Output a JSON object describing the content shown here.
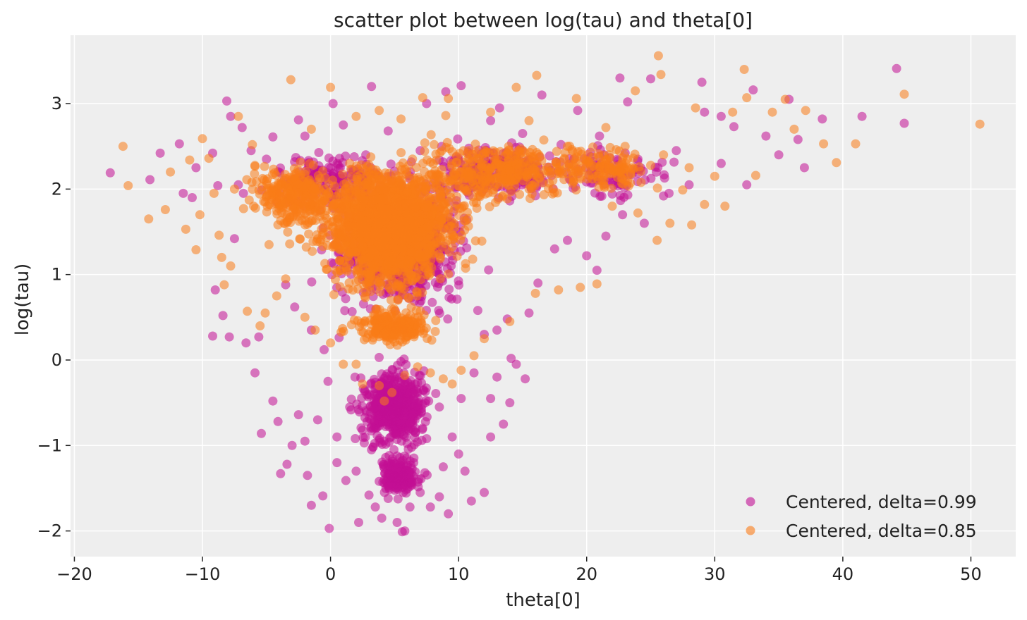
{
  "chart_data": {
    "type": "scatter",
    "title": "scatter plot between log(tau) and theta[0]",
    "xlabel": "theta[0]",
    "ylabel": "log(tau)",
    "xlim": [
      -20.3,
      53.5
    ],
    "ylim": [
      -2.3,
      3.8
    ],
    "xticks": [
      -20,
      -10,
      0,
      10,
      20,
      30,
      40,
      50
    ],
    "xtick_labels": [
      "−20",
      "−10",
      "0",
      "10",
      "20",
      "30",
      "40",
      "50"
    ],
    "yticks": [
      -2,
      -1,
      0,
      1,
      2,
      3
    ],
    "ytick_labels": [
      "−2",
      "−1",
      "0",
      "1",
      "2",
      "3"
    ],
    "grid": true,
    "legend_position": "bottom-right",
    "series": [
      {
        "name": "Centered, delta=0.99",
        "color": "#c20f94",
        "alpha": 0.55,
        "points": [
          [
            -17.2,
            2.19
          ],
          [
            -14.1,
            2.11
          ],
          [
            -13.3,
            2.42
          ],
          [
            -11.8,
            2.53
          ],
          [
            -11.5,
            1.95
          ],
          [
            -10.8,
            1.9
          ],
          [
            -9.2,
            2.42
          ],
          [
            -8.8,
            2.04
          ],
          [
            -9.0,
            0.82
          ],
          [
            -8.4,
            0.52
          ],
          [
            -9.2,
            0.28
          ],
          [
            -7.9,
            0.27
          ],
          [
            -7.5,
            1.42
          ],
          [
            -7.2,
            2.05
          ],
          [
            -6.9,
            2.72
          ],
          [
            -6.6,
            0.2
          ],
          [
            -5.6,
            0.27
          ],
          [
            -5.9,
            -0.15
          ],
          [
            -5.4,
            -0.86
          ],
          [
            -4.5,
            -0.48
          ],
          [
            -4.1,
            -0.72
          ],
          [
            -3.9,
            -1.33
          ],
          [
            -3.4,
            -1.22
          ],
          [
            -3.0,
            -1.0
          ],
          [
            -2.5,
            -0.64
          ],
          [
            -2.0,
            -0.95
          ],
          [
            -1.8,
            -1.35
          ],
          [
            -1.5,
            -1.7
          ],
          [
            -0.6,
            -1.59
          ],
          [
            -0.1,
            -1.97
          ],
          [
            0.5,
            -1.2
          ],
          [
            1.2,
            -1.41
          ],
          [
            2.0,
            -1.3
          ],
          [
            3.0,
            -1.58
          ],
          [
            3.5,
            -1.72
          ],
          [
            4.0,
            -1.85
          ],
          [
            4.5,
            -1.62
          ],
          [
            5.2,
            -1.9
          ],
          [
            5.6,
            -2.01
          ],
          [
            5.8,
            -2.0
          ],
          [
            6.2,
            -1.72
          ],
          [
            7.0,
            -1.55
          ],
          [
            8.5,
            -1.6
          ],
          [
            9.2,
            -1.8
          ],
          [
            10.5,
            -1.3
          ],
          [
            11.0,
            -1.65
          ],
          [
            12.0,
            -1.55
          ],
          [
            12.5,
            -0.9
          ],
          [
            13.5,
            -0.75
          ],
          [
            14.0,
            -0.5
          ],
          [
            13.0,
            -0.2
          ],
          [
            14.5,
            -0.05
          ],
          [
            15.2,
            -0.22
          ],
          [
            14.1,
            0.02
          ],
          [
            12.0,
            0.3
          ],
          [
            13.0,
            0.35
          ],
          [
            11.5,
            0.58
          ],
          [
            13.8,
            0.48
          ],
          [
            15.5,
            0.55
          ],
          [
            16.2,
            0.9
          ],
          [
            17.5,
            1.3
          ],
          [
            18.5,
            1.4
          ],
          [
            20.0,
            1.22
          ],
          [
            20.8,
            1.05
          ],
          [
            21.5,
            1.45
          ],
          [
            22.8,
            1.7
          ],
          [
            24.5,
            1.6
          ],
          [
            26.0,
            1.92
          ],
          [
            28.0,
            2.05
          ],
          [
            29.2,
            2.9
          ],
          [
            29.0,
            3.25
          ],
          [
            30.5,
            2.85
          ],
          [
            31.5,
            2.73
          ],
          [
            33.0,
            3.16
          ],
          [
            34.0,
            2.62
          ],
          [
            35.0,
            2.4
          ],
          [
            35.8,
            3.05
          ],
          [
            36.5,
            2.58
          ],
          [
            37.0,
            2.25
          ],
          [
            38.4,
            2.82
          ],
          [
            41.5,
            2.85
          ],
          [
            44.2,
            3.41
          ],
          [
            44.8,
            2.77
          ],
          [
            22.6,
            3.3
          ],
          [
            23.2,
            3.02
          ],
          [
            25.0,
            3.29
          ],
          [
            19.3,
            2.92
          ],
          [
            16.5,
            3.1
          ],
          [
            13.2,
            2.95
          ],
          [
            10.2,
            3.21
          ],
          [
            9.0,
            3.14
          ],
          [
            7.5,
            3.0
          ],
          [
            3.2,
            3.2
          ],
          [
            0.2,
            3.0
          ],
          [
            -2.5,
            2.81
          ],
          [
            -4.5,
            2.61
          ],
          [
            -8.1,
            3.03
          ],
          [
            -7.8,
            2.85
          ],
          [
            -6.2,
            2.45
          ],
          [
            -5.0,
            2.35
          ],
          [
            -2.0,
            2.62
          ],
          [
            1.0,
            2.75
          ],
          [
            4.5,
            2.68
          ],
          [
            7.0,
            2.45
          ],
          [
            12.5,
            2.8
          ],
          [
            15.0,
            2.65
          ],
          [
            18.0,
            2.52
          ],
          [
            21.0,
            2.62
          ],
          [
            24.0,
            2.35
          ],
          [
            27.0,
            2.45
          ],
          [
            30.5,
            2.3
          ],
          [
            32.5,
            2.05
          ],
          [
            -10.5,
            2.25
          ],
          [
            -6.8,
            1.95
          ],
          [
            -4.2,
            1.85
          ],
          [
            -3.5,
            0.88
          ],
          [
            -2.8,
            0.62
          ],
          [
            -1.5,
            0.35
          ],
          [
            -0.5,
            0.12
          ],
          [
            -0.2,
            -0.25
          ],
          [
            -1.0,
            -0.7
          ],
          [
            0.5,
            -0.9
          ],
          [
            1.5,
            -0.55
          ],
          [
            2.5,
            -0.82
          ],
          [
            3.2,
            -1.05
          ],
          [
            4.2,
            -0.48
          ],
          [
            5.5,
            -0.75
          ],
          [
            6.5,
            -1.2
          ],
          [
            7.5,
            -0.92
          ],
          [
            8.5,
            -0.55
          ],
          [
            9.5,
            -0.9
          ],
          [
            10.2,
            -0.45
          ],
          [
            11.2,
            -0.15
          ],
          [
            12.5,
            -0.45
          ],
          [
            2.2,
            -1.9
          ],
          [
            3.8,
            -1.42
          ],
          [
            7.8,
            -1.72
          ],
          [
            8.8,
            -1.25
          ],
          [
            10.0,
            -1.1
          ]
        ],
        "cores": [
          {
            "cx": 5.5,
            "cy": 1.3,
            "rx": 7.2,
            "ry": 0.95,
            "n": 700
          },
          {
            "cx": 5.0,
            "cy": -0.55,
            "rx": 3.6,
            "ry": 0.6,
            "n": 500
          },
          {
            "cx": 5.5,
            "cy": -1.35,
            "rx": 2.2,
            "ry": 0.35,
            "n": 160
          },
          {
            "cx": 13.0,
            "cy": 2.2,
            "rx": 8.0,
            "ry": 0.45,
            "n": 220
          },
          {
            "cx": 0.0,
            "cy": 2.1,
            "rx": 6.5,
            "ry": 0.45,
            "n": 180
          },
          {
            "cx": 22.0,
            "cy": 2.2,
            "rx": 5.5,
            "ry": 0.4,
            "n": 90
          }
        ]
      },
      {
        "name": "Centered, delta=0.85",
        "color": "#fa7c17",
        "alpha": 0.55,
        "points": [
          [
            -16.2,
            2.5
          ],
          [
            -15.8,
            2.04
          ],
          [
            -14.2,
            1.65
          ],
          [
            -12.9,
            1.76
          ],
          [
            -12.5,
            2.2
          ],
          [
            -11.3,
            1.53
          ],
          [
            -11.0,
            2.34
          ],
          [
            -10.5,
            1.29
          ],
          [
            -10.2,
            1.7
          ],
          [
            -10.0,
            2.59
          ],
          [
            -9.5,
            2.36
          ],
          [
            -9.1,
            1.95
          ],
          [
            -8.7,
            1.46
          ],
          [
            -8.5,
            1.2
          ],
          [
            -8.3,
            0.88
          ],
          [
            -7.8,
            1.1
          ],
          [
            -7.2,
            2.85
          ],
          [
            -6.5,
            0.57
          ],
          [
            -6.1,
            2.52
          ],
          [
            -5.5,
            0.4
          ],
          [
            -5.1,
            0.55
          ],
          [
            -4.2,
            0.75
          ],
          [
            -3.1,
            3.28
          ],
          [
            0.0,
            3.19
          ],
          [
            3.8,
            2.92
          ],
          [
            7.2,
            3.07
          ],
          [
            9.2,
            3.06
          ],
          [
            14.5,
            3.19
          ],
          [
            16.1,
            3.33
          ],
          [
            19.2,
            3.06
          ],
          [
            23.8,
            3.15
          ],
          [
            25.6,
            3.56
          ],
          [
            25.8,
            3.34
          ],
          [
            28.5,
            2.95
          ],
          [
            31.4,
            2.9
          ],
          [
            32.3,
            3.4
          ],
          [
            32.5,
            3.07
          ],
          [
            33.2,
            2.16
          ],
          [
            34.5,
            2.9
          ],
          [
            35.5,
            3.05
          ],
          [
            36.2,
            2.7
          ],
          [
            37.1,
            2.92
          ],
          [
            38.5,
            2.53
          ],
          [
            39.5,
            2.31
          ],
          [
            41.0,
            2.53
          ],
          [
            44.8,
            3.11
          ],
          [
            50.7,
            2.76
          ],
          [
            30.0,
            2.15
          ],
          [
            29.2,
            1.82
          ],
          [
            30.8,
            1.8
          ],
          [
            27.5,
            1.99
          ],
          [
            28.2,
            1.58
          ],
          [
            26.5,
            1.6
          ],
          [
            25.5,
            1.4
          ],
          [
            24.0,
            1.72
          ],
          [
            22.0,
            1.8
          ],
          [
            20.8,
            0.89
          ],
          [
            19.5,
            0.85
          ],
          [
            17.8,
            0.82
          ],
          [
            16.0,
            0.78
          ],
          [
            14.0,
            0.45
          ],
          [
            12.0,
            0.25
          ],
          [
            11.2,
            0.05
          ],
          [
            10.2,
            -0.12
          ],
          [
            9.5,
            -0.28
          ],
          [
            8.8,
            -0.22
          ],
          [
            7.8,
            -0.15
          ],
          [
            6.8,
            -0.08
          ],
          [
            5.8,
            -0.18
          ],
          [
            4.8,
            -0.38
          ],
          [
            4.2,
            -0.48
          ],
          [
            3.8,
            -0.3
          ],
          [
            2.5,
            -0.28
          ],
          [
            2.0,
            -0.05
          ],
          [
            1.0,
            -0.05
          ],
          [
            0.0,
            0.2
          ],
          [
            -1.2,
            0.35
          ],
          [
            -2.0,
            0.5
          ],
          [
            -3.5,
            0.95
          ],
          [
            -4.8,
            1.35
          ],
          [
            -6.0,
            1.8
          ],
          [
            -7.5,
            2.0
          ],
          [
            18.5,
            2.5
          ],
          [
            21.5,
            2.72
          ],
          [
            23.0,
            2.5
          ],
          [
            26.0,
            2.4
          ],
          [
            28.0,
            2.25
          ],
          [
            15.5,
            2.8
          ],
          [
            12.5,
            2.9
          ],
          [
            9.0,
            2.86
          ],
          [
            5.5,
            2.82
          ],
          [
            2.0,
            2.85
          ],
          [
            -1.5,
            2.7
          ]
        ],
        "cores": [
          {
            "cx": 4.5,
            "cy": 1.5,
            "rx": 6.0,
            "ry": 0.95,
            "n": 1400
          },
          {
            "cx": 4.5,
            "cy": 1.7,
            "rx": 9.0,
            "ry": 0.8,
            "n": 700
          },
          {
            "cx": 13.0,
            "cy": 2.2,
            "rx": 8.0,
            "ry": 0.45,
            "n": 320
          },
          {
            "cx": -3.0,
            "cy": 1.9,
            "rx": 4.5,
            "ry": 0.5,
            "n": 260
          },
          {
            "cx": 5.0,
            "cy": 0.4,
            "rx": 4.0,
            "ry": 0.3,
            "n": 240
          },
          {
            "cx": 21.0,
            "cy": 2.25,
            "rx": 6.0,
            "ry": 0.35,
            "n": 140
          }
        ]
      }
    ]
  }
}
